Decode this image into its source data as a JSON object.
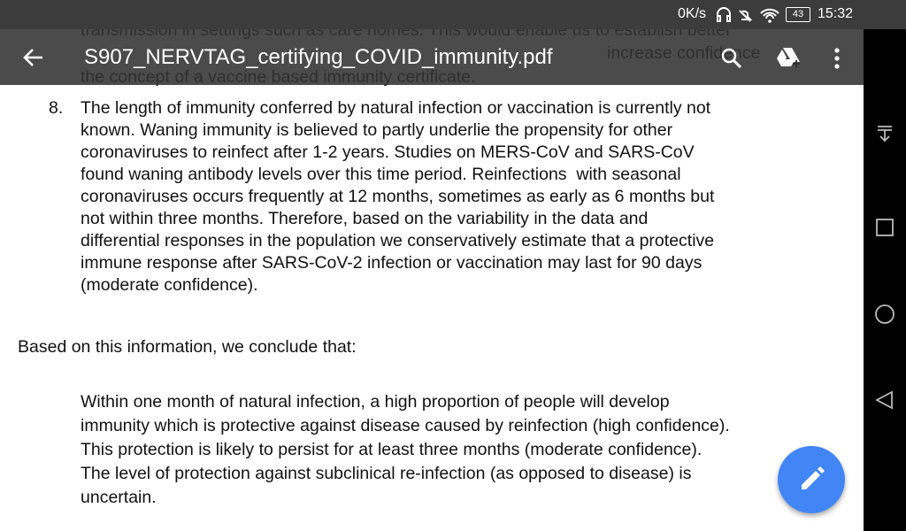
{
  "status_bar": {
    "speed": "0K/s",
    "battery": "43",
    "time": "15:32"
  },
  "toolbar": {
    "title": "S907_NERVTAG_certifying_COVID_immunity.pdf"
  },
  "document": {
    "background_lines": [
      "transmission in settings such as care homes. This would enable us to establish better",
      "increase confidence",
      "the concept of a vaccine based immunity certificate."
    ],
    "item_number": "8.",
    "item_lines": [
      "The length of immunity conferred by natural infection or vaccination is currently not",
      "known. Waning immunity is believed to partly underlie the propensity for other",
      "coronaviruses to reinfect after 1-2 years. Studies on MERS-CoV and SARS-CoV",
      "found waning antibody levels over this time period. Reinfections  with seasonal",
      "coronaviruses occurs frequently at 12 months, sometimes as early as 6 months but",
      "not within three months. Therefore, based on the variability in the data and",
      "differential responses in the population we conservatively estimate that a protective",
      "immune response after SARS-CoV-2 infection or vaccination may last for 90 days",
      "(moderate confidence)."
    ],
    "intro": "Based on this information, we conclude that:",
    "conclusion_lines": [
      "Within one month of natural infection, a high proportion of people will develop",
      "immunity which is protective against disease caused by reinfection (high confidence).",
      "This protection is likely to persist for at least three months (moderate confidence).",
      "The level of protection against subclinical re-infection (as opposed to disease) is",
      "uncertain."
    ]
  }
}
